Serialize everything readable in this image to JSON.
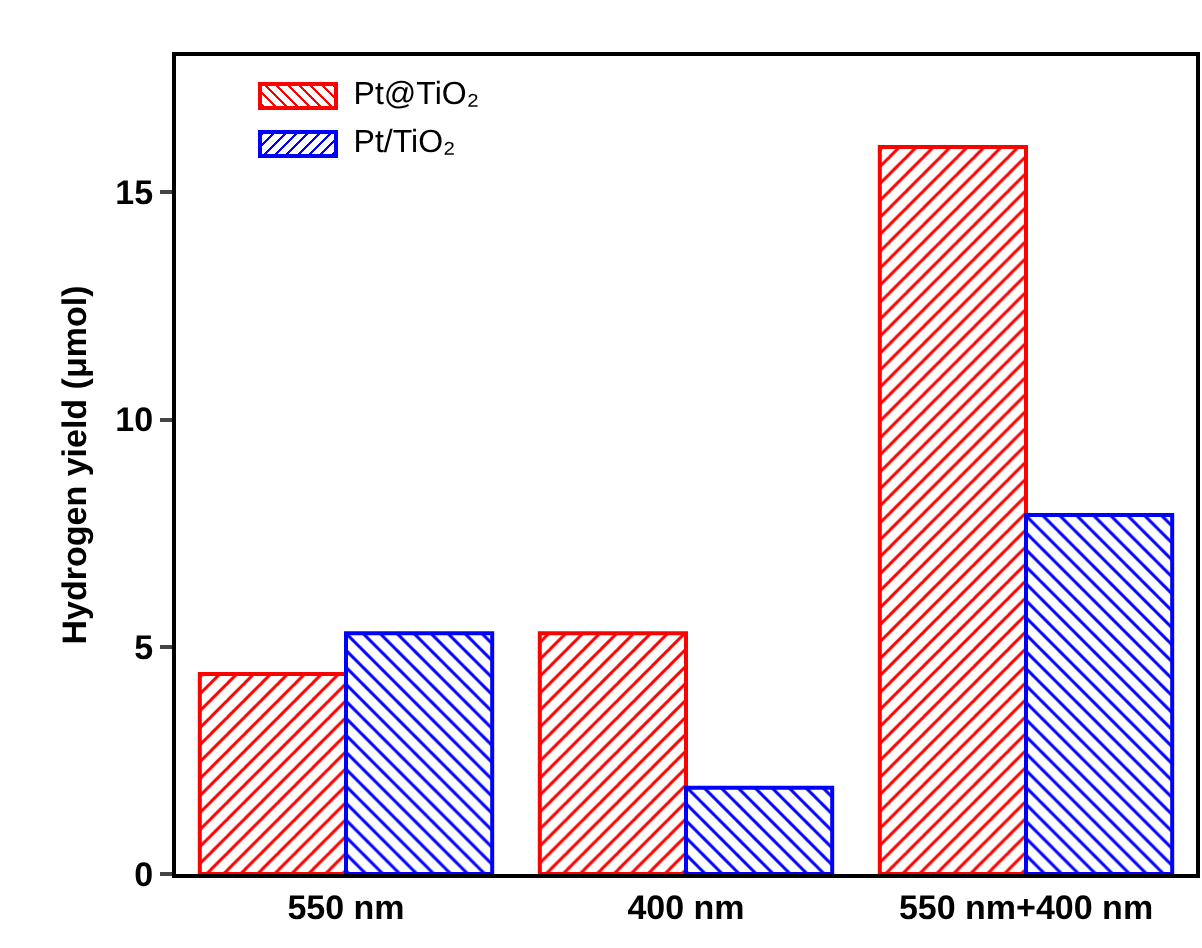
{
  "chart_data": {
    "type": "bar",
    "ylabel": "Hydrogen yield (μmol)",
    "categories": [
      "550 nm",
      "400 nm",
      "550 nm+400 nm"
    ],
    "series": [
      {
        "name": "Pt@TiO₂",
        "color": "#ff0000",
        "values": [
          4.4,
          5.3,
          16.0
        ]
      },
      {
        "name": "Pt/TiO₂",
        "color": "#0000ff",
        "values": [
          5.3,
          1.9,
          7.9
        ]
      }
    ],
    "ylim": [
      0,
      18
    ],
    "yticks": [
      0,
      5,
      10,
      15
    ],
    "grid": false,
    "legend": "top left"
  }
}
